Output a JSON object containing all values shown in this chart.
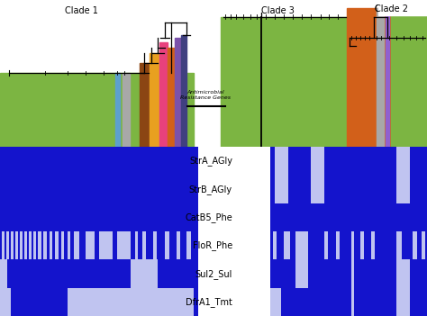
{
  "clade1_label": "Clade 1",
  "clade2_label": "Clade 2",
  "clade3_label": "Clade 3",
  "antimicrobial_label": "Antimicrobial\nResistance Genes",
  "gene_labels": [
    "StrA_AGly",
    "StrB_AGly",
    "CatB5_Phe",
    "FloR_Phe",
    "Sul2_Sul",
    "DfrA1_Tmt"
  ],
  "green": "#7cb542",
  "orange": "#d2601a",
  "pink": "#e8417d",
  "gold": "#e8a020",
  "purple": "#7b52ab",
  "gray": "#a8a8a8",
  "lightblue": "#5da0cc",
  "violet": "#9060d0",
  "blue_dark": "#1414cc",
  "white_light": "#c0c4f0",
  "fig_w": 4.74,
  "fig_h": 3.51,
  "dpi": 100
}
